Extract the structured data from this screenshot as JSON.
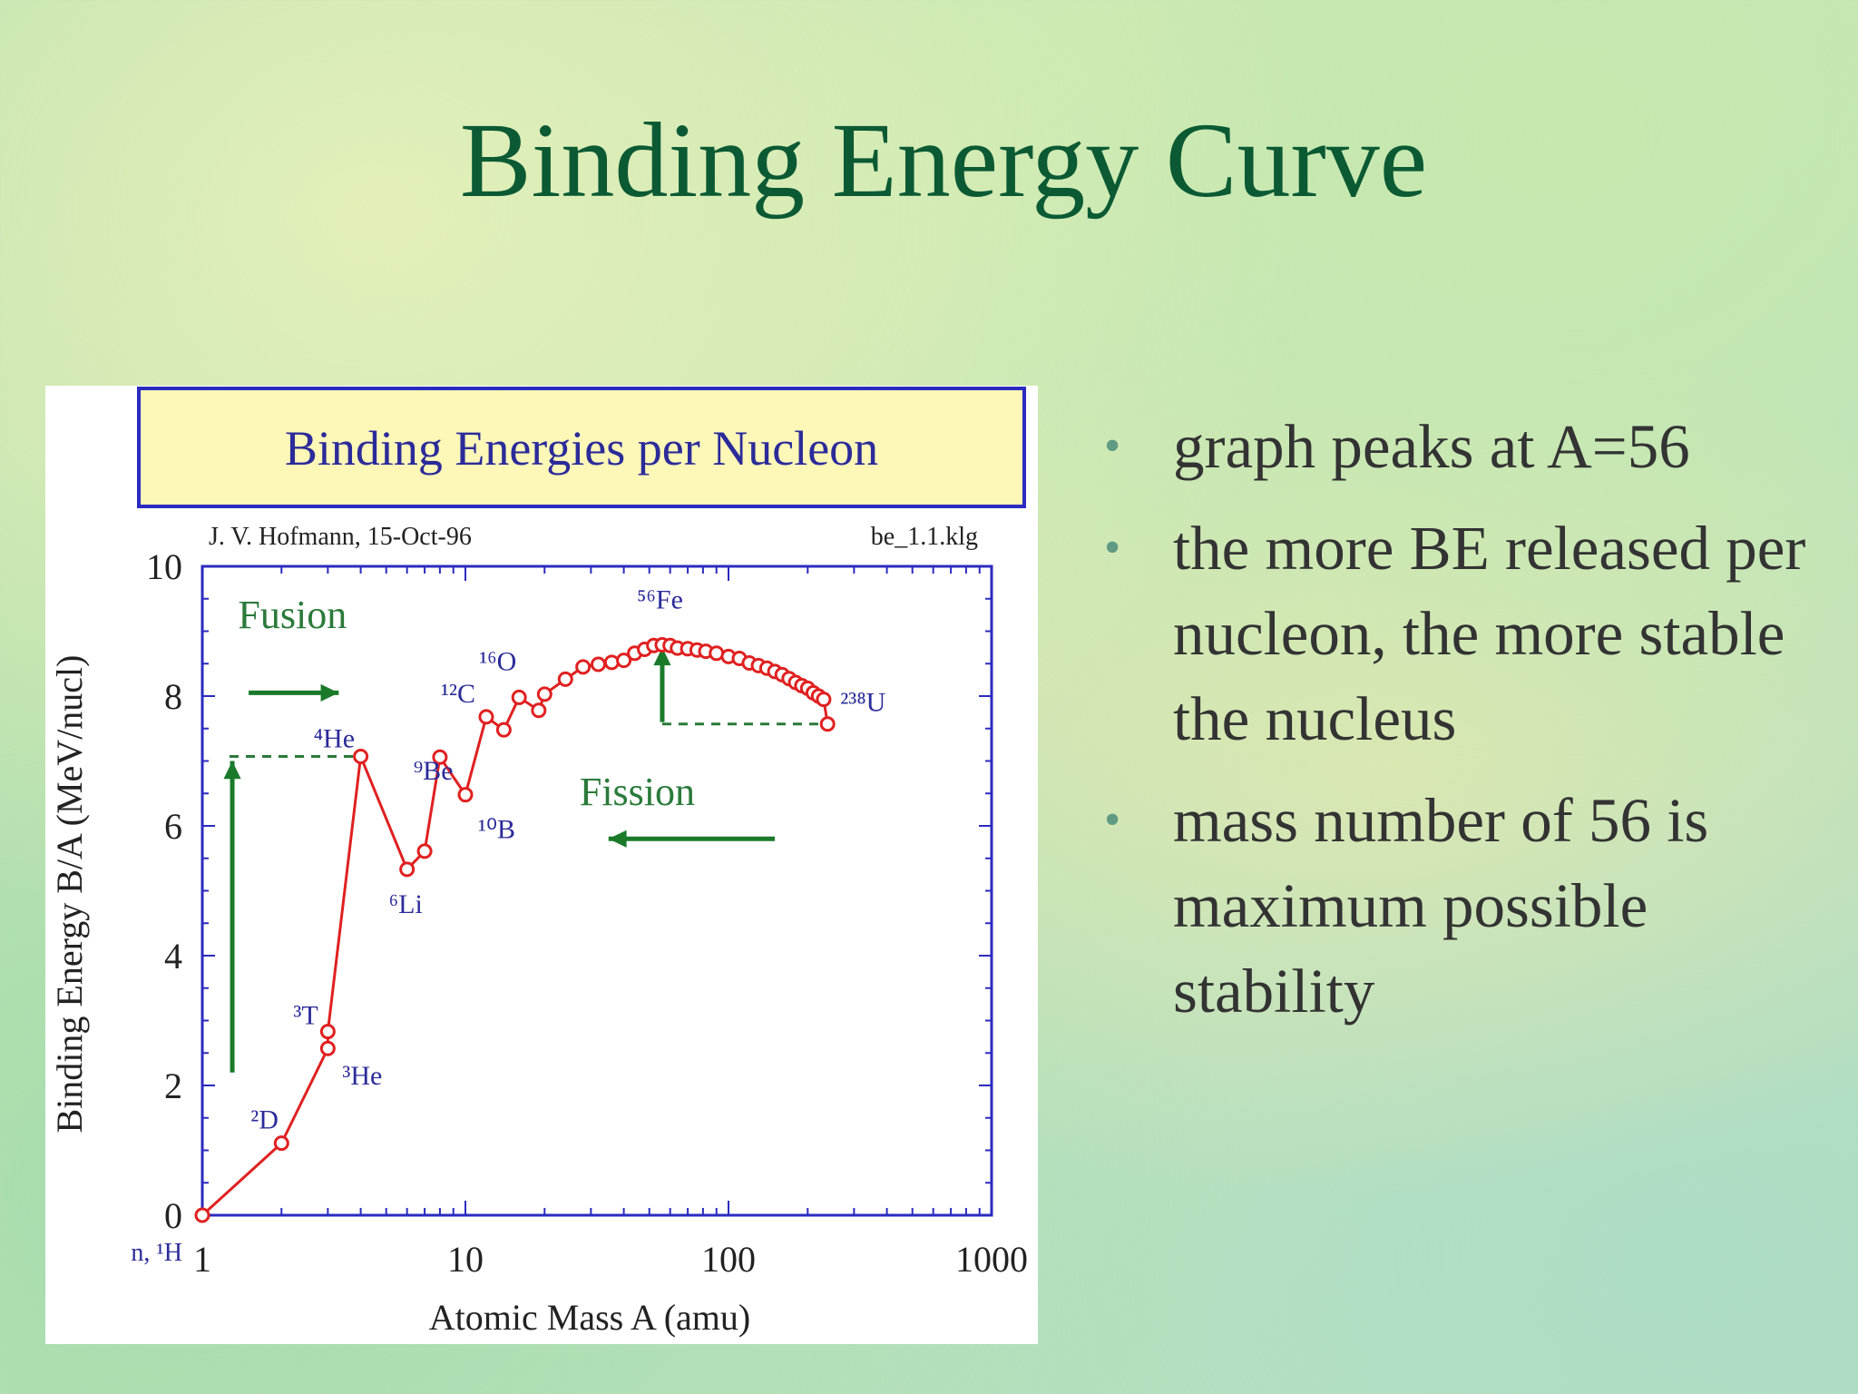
{
  "slide": {
    "title": "Binding Energy Curve",
    "bullets": [
      "graph peaks at A=56",
      "the more BE released per nucleon, the more stable the nucleus",
      " mass number of 56 is maximum possible stability"
    ]
  },
  "chart_data": {
    "type": "line",
    "title": "Binding Energies per Nucleon",
    "author_note": "J. V. Hofmann, 15-Oct-96",
    "file_note": "be_1.1.klg",
    "xlabel": "Atomic Mass A (amu)",
    "ylabel": "Binding Energy B/A (MeV/nucl)",
    "xscale": "log",
    "xlim": [
      1,
      1000
    ],
    "ylim": [
      0,
      10
    ],
    "x_tick_labels": [
      "1",
      "10",
      "100",
      "1000"
    ],
    "x_tick_values": [
      1,
      10,
      100,
      1000
    ],
    "y_tick_labels": [
      "0",
      "2",
      "4",
      "6",
      "8",
      "10"
    ],
    "y_tick_values": [
      0,
      2,
      4,
      6,
      8,
      10
    ],
    "extra_x_label": "n, ¹H",
    "series": [
      {
        "color": "#e02020",
        "x": [
          1,
          2,
          3,
          3,
          4,
          6,
          7,
          8,
          10,
          12,
          14,
          16,
          19,
          20,
          24,
          28,
          32,
          36,
          40,
          44,
          48,
          52,
          56,
          60,
          64,
          70,
          76,
          82,
          90,
          100,
          110,
          120,
          130,
          140,
          150,
          160,
          170,
          180,
          190,
          200,
          210,
          220,
          230,
          238
        ],
        "y": [
          0,
          1.11,
          2.57,
          2.83,
          7.07,
          5.33,
          5.61,
          7.06,
          6.48,
          7.68,
          7.48,
          7.98,
          7.78,
          8.03,
          8.26,
          8.45,
          8.49,
          8.52,
          8.55,
          8.66,
          8.72,
          8.78,
          8.79,
          8.78,
          8.74,
          8.73,
          8.71,
          8.69,
          8.66,
          8.61,
          8.58,
          8.51,
          8.47,
          8.43,
          8.38,
          8.33,
          8.27,
          8.21,
          8.16,
          8.12,
          8.05,
          8.0,
          7.95,
          7.57
        ]
      }
    ],
    "point_labels": [
      {
        "text": "²D",
        "x": 2,
        "y": 1.11
      },
      {
        "text": "³T",
        "x": 3,
        "y": 2.83
      },
      {
        "text": "³He",
        "x": 3,
        "y": 2.57
      },
      {
        "text": "⁴He",
        "x": 4,
        "y": 7.07
      },
      {
        "text": "⁶Li",
        "x": 6,
        "y": 5.33
      },
      {
        "text": "⁹Be",
        "x": 9,
        "y": 6.46
      },
      {
        "text": "¹⁰B",
        "x": 10,
        "y": 6.48
      },
      {
        "text": "¹²C",
        "x": 12,
        "y": 7.68
      },
      {
        "text": "¹⁶O",
        "x": 16,
        "y": 7.98
      },
      {
        "text": "⁵⁶Fe",
        "x": 56,
        "y": 8.79
      },
      {
        "text": "²³⁸U",
        "x": 238,
        "y": 7.57
      }
    ],
    "annotations": {
      "fusion_label": "Fusion",
      "fission_label": "Fission",
      "arrow_color": "#1a7a2a",
      "label_color": "#2a7a3a",
      "axes_color": "#2b2bc0",
      "title_bg": "#fdf7b8"
    }
  }
}
